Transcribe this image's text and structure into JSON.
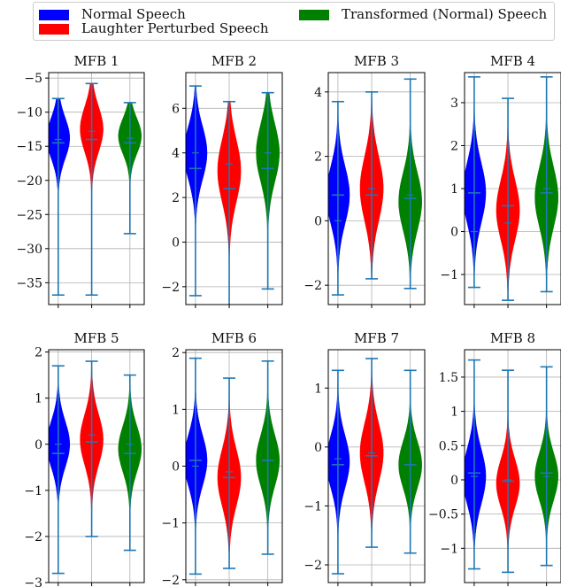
{
  "legend": {
    "entries": [
      {
        "label": "Normal Speech",
        "color": "#0000ff"
      },
      {
        "label": "Laughter Perturbed Speech",
        "color": "#ff0000"
      },
      {
        "label": "Transformed (Normal) Speech",
        "color": "#008000"
      }
    ]
  },
  "colors": {
    "whisker": "#1f77b4",
    "grid": "#b0b0b0"
  },
  "chart_data": [
    {
      "type": "violin",
      "title": "MFB 1",
      "ylim": [
        -38.2,
        -4.2
      ],
      "yticks": [
        -35,
        -30,
        -25,
        -20,
        -15,
        -10,
        -5
      ],
      "series": [
        {
          "name": "Normal Speech",
          "min": -36.8,
          "max": -8.0,
          "mean": -14.5,
          "median": -14.0,
          "center": -13.8,
          "spread": 3.0
        },
        {
          "name": "Laughter Perturbed Speech",
          "min": -36.8,
          "max": -5.8,
          "mean": -14.0,
          "median": -12.8,
          "center": -12.5,
          "spread": 3.3
        },
        {
          "name": "Transformed (Normal) Speech",
          "min": -27.8,
          "max": -8.6,
          "mean": -14.5,
          "median": -13.8,
          "center": -13.5,
          "spread": 2.6
        }
      ]
    },
    {
      "type": "violin",
      "title": "MFB 2",
      "ylim": [
        -2.8,
        7.6
      ],
      "yticks": [
        -2,
        0,
        2,
        4,
        6
      ],
      "series": [
        {
          "name": "Normal Speech",
          "min": -2.4,
          "max": 7.0,
          "mean": 3.3,
          "median": 4.0,
          "center": 4.0,
          "spread": 1.2
        },
        {
          "name": "Laughter Perturbed Speech",
          "min": -3.3,
          "max": 6.3,
          "mean": 2.4,
          "median": 3.5,
          "center": 3.2,
          "spread": 1.4
        },
        {
          "name": "Transformed (Normal) Speech",
          "min": -2.1,
          "max": 6.7,
          "mean": 3.3,
          "median": 4.0,
          "center": 4.0,
          "spread": 1.3
        }
      ]
    },
    {
      "type": "violin",
      "title": "MFB 3",
      "ylim": [
        -2.6,
        4.6
      ],
      "yticks": [
        -2,
        0,
        2,
        4
      ],
      "series": [
        {
          "name": "Normal Speech",
          "min": -2.3,
          "max": 3.7,
          "mean": 0.8,
          "median": 0.0,
          "center": 0.8,
          "spread": 0.9
        },
        {
          "name": "Laughter Perturbed Speech",
          "min": -1.8,
          "max": 4.0,
          "mean": 0.8,
          "median": 1.0,
          "center": 1.0,
          "spread": 1.0
        },
        {
          "name": "Transformed (Normal) Speech",
          "min": -2.1,
          "max": 4.4,
          "mean": 0.7,
          "median": 0.8,
          "center": 0.6,
          "spread": 0.9
        }
      ]
    },
    {
      "type": "violin",
      "title": "MFB 4",
      "ylim": [
        -1.7,
        3.7
      ],
      "yticks": [
        -1,
        0,
        1,
        2,
        3
      ],
      "series": [
        {
          "name": "Normal Speech",
          "min": -1.3,
          "max": 3.6,
          "mean": 0.9,
          "median": 0.0,
          "center": 0.9,
          "spread": 0.7
        },
        {
          "name": "Laughter Perturbed Speech",
          "min": -1.6,
          "max": 3.1,
          "mean": 0.6,
          "median": 0.2,
          "center": 0.5,
          "spread": 0.7
        },
        {
          "name": "Transformed (Normal) Speech",
          "min": -1.4,
          "max": 3.6,
          "mean": 0.9,
          "median": 1.0,
          "center": 0.8,
          "spread": 0.7
        }
      ]
    },
    {
      "type": "violin",
      "title": "MFB 5",
      "ylim": [
        -3.0,
        2.05
      ],
      "yticks": [
        -3,
        -2,
        -1,
        0,
        1,
        2
      ],
      "series": [
        {
          "name": "Normal Speech",
          "min": -2.8,
          "max": 1.7,
          "mean": -0.2,
          "median": 0.0,
          "center": 0.0,
          "spread": 0.5
        },
        {
          "name": "Laughter Perturbed Speech",
          "min": -2.0,
          "max": 1.8,
          "mean": 0.05,
          "median": 0.2,
          "center": 0.1,
          "spread": 0.55
        },
        {
          "name": "Transformed (Normal) Speech",
          "min": -2.3,
          "max": 1.5,
          "mean": -0.2,
          "median": 0.0,
          "center": -0.1,
          "spread": 0.5
        }
      ]
    },
    {
      "type": "violin",
      "title": "MFB 6",
      "ylim": [
        -2.05,
        2.05
      ],
      "yticks": [
        -2,
        -1,
        0,
        1,
        2
      ],
      "series": [
        {
          "name": "Normal Speech",
          "min": -1.9,
          "max": 1.9,
          "mean": 0.1,
          "median": 0.0,
          "center": 0.1,
          "spread": 0.45
        },
        {
          "name": "Laughter Perturbed Speech",
          "min": -1.8,
          "max": 1.55,
          "mean": -0.2,
          "median": -0.1,
          "center": -0.2,
          "spread": 0.5
        },
        {
          "name": "Transformed (Normal) Speech",
          "min": -1.55,
          "max": 1.85,
          "mean": 0.1,
          "median": 0.1,
          "center": 0.1,
          "spread": 0.45
        }
      ]
    },
    {
      "type": "violin",
      "title": "MFB 7",
      "ylim": [
        -2.3,
        1.65
      ],
      "yticks": [
        -2,
        -1,
        0,
        1
      ],
      "series": [
        {
          "name": "Normal Speech",
          "min": -2.15,
          "max": 1.3,
          "mean": -0.3,
          "median": -0.2,
          "center": -0.25,
          "spread": 0.45
        },
        {
          "name": "Laughter Perturbed Speech",
          "min": -1.7,
          "max": 1.5,
          "mean": -0.15,
          "median": -0.1,
          "center": -0.1,
          "spread": 0.5
        },
        {
          "name": "Transformed (Normal) Speech",
          "min": -1.8,
          "max": 1.3,
          "mean": -0.3,
          "median": -0.3,
          "center": -0.3,
          "spread": 0.4
        }
      ]
    },
    {
      "type": "violin",
      "title": "MFB 8",
      "ylim": [
        -1.5,
        1.9
      ],
      "yticks": [
        -1.0,
        -0.5,
        0.0,
        0.5,
        1.0,
        1.5
      ],
      "series": [
        {
          "name": "Normal Speech",
          "min": -1.3,
          "max": 1.75,
          "mean": 0.1,
          "median": 0.05,
          "center": 0.05,
          "spread": 0.4
        },
        {
          "name": "Laughter Perturbed Speech",
          "min": -1.35,
          "max": 1.6,
          "mean": -0.02,
          "median": 0.0,
          "center": -0.05,
          "spread": 0.35
        },
        {
          "name": "Transformed (Normal) Speech",
          "min": -1.25,
          "max": 1.65,
          "mean": 0.1,
          "median": 0.05,
          "center": 0.05,
          "spread": 0.35
        }
      ]
    }
  ]
}
